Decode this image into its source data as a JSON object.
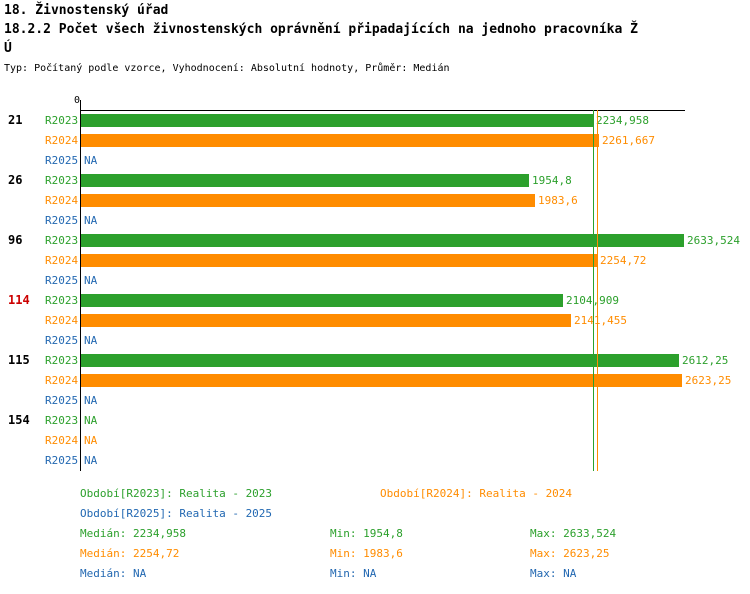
{
  "header": {
    "title": "18. Živnostenský úřad",
    "subtitle_line1": "18.2.2 Počet všech živnostenských oprávnění připadajících na jednoho pracovníka Ž",
    "subtitle_line2": "Ú",
    "meta": "Typ: Počítaný podle vzorce, Vyhodnocení: Absolutní hodnoty, Průměr: Medián"
  },
  "colors": {
    "green": "#2CA02C",
    "orange": "#FF8C00",
    "blue": "#2268B2",
    "red": "#CC0000",
    "axis": "#000000"
  },
  "chart_data": {
    "type": "bar",
    "orientation": "horizontal",
    "title": "18.2.2 Počet všech živnostenských oprávnění připadajících na jednoho pracovníka ŽÚ",
    "note": "Typ: Počítaný podle vzorce, Vyhodnocení: Absolutní hodnoty, Průměr: Medián",
    "x_axis": {
      "zero_label": "0",
      "xlim": [
        0,
        2633.524
      ],
      "grid": false
    },
    "categories": [
      {
        "label": "21",
        "color": "#000000"
      },
      {
        "label": "26",
        "color": "#000000"
      },
      {
        "label": "96",
        "color": "#000000"
      },
      {
        "label": "114",
        "color": "#CC0000"
      },
      {
        "label": "115",
        "color": "#000000"
      },
      {
        "label": "154",
        "color": "#000000"
      }
    ],
    "series": [
      {
        "name": "R2023",
        "color": "#2CA02C",
        "values": [
          2234.958,
          1954.8,
          2633.524,
          2104.909,
          2612.25,
          null
        ],
        "value_labels": [
          "2234,958",
          "1954,8",
          "2633,524",
          "2104,909",
          "2612,25",
          "NA"
        ],
        "median": 2234.958,
        "median_label": "2234,958"
      },
      {
        "name": "R2024",
        "color": "#FF8C00",
        "values": [
          2261.667,
          1983.6,
          2254.72,
          2141.455,
          2623.25,
          null
        ],
        "value_labels": [
          "2261,667",
          "1983,6",
          "2254,72",
          "2141,455",
          "2623,25",
          "NA"
        ],
        "median": 2254.72,
        "median_label": "2254,72"
      },
      {
        "name": "R2025",
        "color": "#2268B2",
        "values": [
          null,
          null,
          null,
          null,
          null,
          null
        ],
        "value_labels": [
          "NA",
          "NA",
          "NA",
          "NA",
          "NA",
          "NA"
        ],
        "median": null,
        "median_label": "NA"
      }
    ]
  },
  "legend": [
    {
      "label": "Období[R2023]: Realita - 2023",
      "color": "#2CA02C"
    },
    {
      "label": "Období[R2024]: Realita - 2024",
      "color": "#FF8C00"
    },
    {
      "label": "Období[R2025]: Realita - 2025",
      "color": "#2268B2"
    }
  ],
  "stats": [
    {
      "median": "Medián: 2234,958",
      "min": "Min: 1954,8",
      "max": "Max: 2633,524",
      "color": "#2CA02C"
    },
    {
      "median": "Medián: 2254,72",
      "min": "Min: 1983,6",
      "max": "Max: 2623,25",
      "color": "#FF8C00"
    },
    {
      "median": "Medián: NA",
      "min": "Min: NA",
      "max": "Max: NA",
      "color": "#2268B2"
    }
  ]
}
